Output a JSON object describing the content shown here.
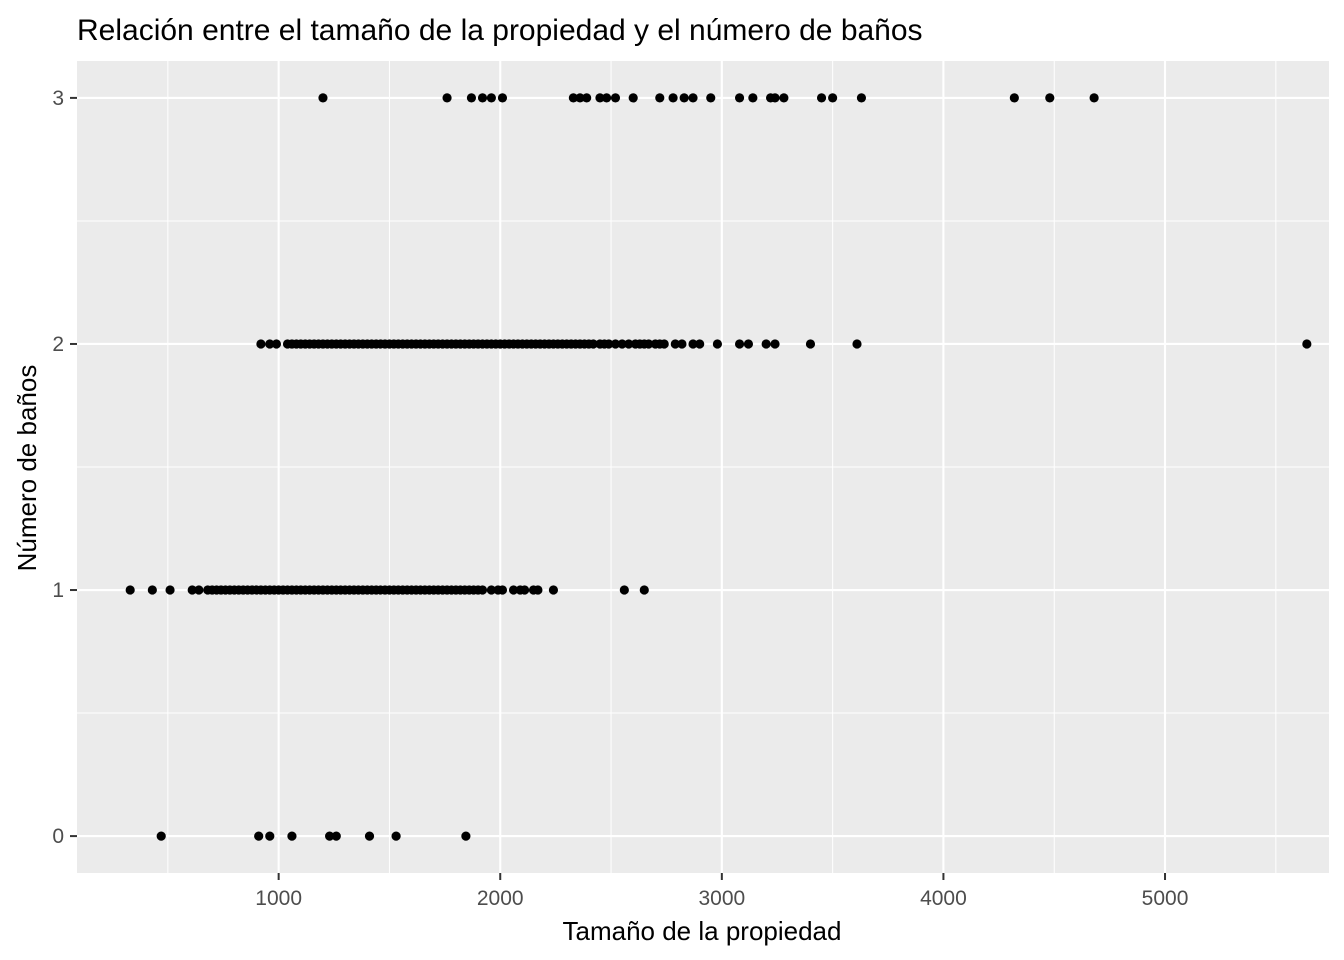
{
  "chart_data": {
    "type": "scatter",
    "title": "Relación entre el tamaño de la propiedad y el número de baños",
    "xlabel": "Tamaño de la propiedad",
    "ylabel": "Número de baños",
    "xlim": [
      90,
      5740
    ],
    "ylim": [
      -0.15,
      3.15
    ],
    "x_ticks": [
      1000,
      2000,
      3000,
      4000,
      5000
    ],
    "x_tick_labels": [
      "1000",
      "2000",
      "3000",
      "4000",
      "5000"
    ],
    "y_ticks": [
      0,
      1,
      2,
      3
    ],
    "y_tick_labels": [
      "0",
      "1",
      "2",
      "3"
    ],
    "grid": true,
    "legend": "none",
    "colors": {
      "panel": "#ebebeb",
      "grid": "#ffffff",
      "point": "#000000",
      "tick": "#4d4d4d"
    },
    "points": [
      {
        "x": 470,
        "y": 0
      },
      {
        "x": 910,
        "y": 0
      },
      {
        "x": 960,
        "y": 0
      },
      {
        "x": 1060,
        "y": 0
      },
      {
        "x": 1230,
        "y": 0
      },
      {
        "x": 1260,
        "y": 0
      },
      {
        "x": 1410,
        "y": 0
      },
      {
        "x": 1530,
        "y": 0
      },
      {
        "x": 1845,
        "y": 0
      },
      {
        "x": 330,
        "y": 1
      },
      {
        "x": 430,
        "y": 1
      },
      {
        "x": 510,
        "y": 1
      },
      {
        "x": 610,
        "y": 1
      },
      {
        "x": 640,
        "y": 1
      },
      {
        "x": 680,
        "y": 1
      },
      {
        "x": 700,
        "y": 1
      },
      {
        "x": 720,
        "y": 1
      },
      {
        "x": 740,
        "y": 1
      },
      {
        "x": 760,
        "y": 1
      },
      {
        "x": 780,
        "y": 1
      },
      {
        "x": 800,
        "y": 1
      },
      {
        "x": 820,
        "y": 1
      },
      {
        "x": 840,
        "y": 1
      },
      {
        "x": 860,
        "y": 1
      },
      {
        "x": 880,
        "y": 1
      },
      {
        "x": 900,
        "y": 1
      },
      {
        "x": 920,
        "y": 1
      },
      {
        "x": 940,
        "y": 1
      },
      {
        "x": 960,
        "y": 1
      },
      {
        "x": 980,
        "y": 1
      },
      {
        "x": 1000,
        "y": 1
      },
      {
        "x": 1020,
        "y": 1
      },
      {
        "x": 1040,
        "y": 1
      },
      {
        "x": 1060,
        "y": 1
      },
      {
        "x": 1080,
        "y": 1
      },
      {
        "x": 1100,
        "y": 1
      },
      {
        "x": 1120,
        "y": 1
      },
      {
        "x": 1140,
        "y": 1
      },
      {
        "x": 1160,
        "y": 1
      },
      {
        "x": 1180,
        "y": 1
      },
      {
        "x": 1200,
        "y": 1
      },
      {
        "x": 1220,
        "y": 1
      },
      {
        "x": 1240,
        "y": 1
      },
      {
        "x": 1260,
        "y": 1
      },
      {
        "x": 1280,
        "y": 1
      },
      {
        "x": 1300,
        "y": 1
      },
      {
        "x": 1320,
        "y": 1
      },
      {
        "x": 1340,
        "y": 1
      },
      {
        "x": 1360,
        "y": 1
      },
      {
        "x": 1380,
        "y": 1
      },
      {
        "x": 1400,
        "y": 1
      },
      {
        "x": 1420,
        "y": 1
      },
      {
        "x": 1440,
        "y": 1
      },
      {
        "x": 1460,
        "y": 1
      },
      {
        "x": 1480,
        "y": 1
      },
      {
        "x": 1500,
        "y": 1
      },
      {
        "x": 1520,
        "y": 1
      },
      {
        "x": 1540,
        "y": 1
      },
      {
        "x": 1560,
        "y": 1
      },
      {
        "x": 1580,
        "y": 1
      },
      {
        "x": 1600,
        "y": 1
      },
      {
        "x": 1620,
        "y": 1
      },
      {
        "x": 1640,
        "y": 1
      },
      {
        "x": 1660,
        "y": 1
      },
      {
        "x": 1680,
        "y": 1
      },
      {
        "x": 1700,
        "y": 1
      },
      {
        "x": 1720,
        "y": 1
      },
      {
        "x": 1740,
        "y": 1
      },
      {
        "x": 1760,
        "y": 1
      },
      {
        "x": 1780,
        "y": 1
      },
      {
        "x": 1800,
        "y": 1
      },
      {
        "x": 1820,
        "y": 1
      },
      {
        "x": 1840,
        "y": 1
      },
      {
        "x": 1860,
        "y": 1
      },
      {
        "x": 1880,
        "y": 1
      },
      {
        "x": 1900,
        "y": 1
      },
      {
        "x": 1920,
        "y": 1
      },
      {
        "x": 1960,
        "y": 1
      },
      {
        "x": 1990,
        "y": 1
      },
      {
        "x": 2010,
        "y": 1
      },
      {
        "x": 2060,
        "y": 1
      },
      {
        "x": 2090,
        "y": 1
      },
      {
        "x": 2110,
        "y": 1
      },
      {
        "x": 2150,
        "y": 1
      },
      {
        "x": 2170,
        "y": 1
      },
      {
        "x": 2240,
        "y": 1
      },
      {
        "x": 2560,
        "y": 1
      },
      {
        "x": 2650,
        "y": 1
      },
      {
        "x": 920,
        "y": 2
      },
      {
        "x": 960,
        "y": 2
      },
      {
        "x": 990,
        "y": 2
      },
      {
        "x": 1040,
        "y": 2
      },
      {
        "x": 1060,
        "y": 2
      },
      {
        "x": 1080,
        "y": 2
      },
      {
        "x": 1100,
        "y": 2
      },
      {
        "x": 1120,
        "y": 2
      },
      {
        "x": 1140,
        "y": 2
      },
      {
        "x": 1160,
        "y": 2
      },
      {
        "x": 1180,
        "y": 2
      },
      {
        "x": 1200,
        "y": 2
      },
      {
        "x": 1220,
        "y": 2
      },
      {
        "x": 1240,
        "y": 2
      },
      {
        "x": 1260,
        "y": 2
      },
      {
        "x": 1280,
        "y": 2
      },
      {
        "x": 1300,
        "y": 2
      },
      {
        "x": 1320,
        "y": 2
      },
      {
        "x": 1340,
        "y": 2
      },
      {
        "x": 1360,
        "y": 2
      },
      {
        "x": 1380,
        "y": 2
      },
      {
        "x": 1400,
        "y": 2
      },
      {
        "x": 1420,
        "y": 2
      },
      {
        "x": 1440,
        "y": 2
      },
      {
        "x": 1460,
        "y": 2
      },
      {
        "x": 1480,
        "y": 2
      },
      {
        "x": 1500,
        "y": 2
      },
      {
        "x": 1520,
        "y": 2
      },
      {
        "x": 1540,
        "y": 2
      },
      {
        "x": 1560,
        "y": 2
      },
      {
        "x": 1580,
        "y": 2
      },
      {
        "x": 1600,
        "y": 2
      },
      {
        "x": 1620,
        "y": 2
      },
      {
        "x": 1640,
        "y": 2
      },
      {
        "x": 1660,
        "y": 2
      },
      {
        "x": 1680,
        "y": 2
      },
      {
        "x": 1700,
        "y": 2
      },
      {
        "x": 1720,
        "y": 2
      },
      {
        "x": 1740,
        "y": 2
      },
      {
        "x": 1760,
        "y": 2
      },
      {
        "x": 1780,
        "y": 2
      },
      {
        "x": 1800,
        "y": 2
      },
      {
        "x": 1820,
        "y": 2
      },
      {
        "x": 1840,
        "y": 2
      },
      {
        "x": 1860,
        "y": 2
      },
      {
        "x": 1880,
        "y": 2
      },
      {
        "x": 1900,
        "y": 2
      },
      {
        "x": 1920,
        "y": 2
      },
      {
        "x": 1940,
        "y": 2
      },
      {
        "x": 1960,
        "y": 2
      },
      {
        "x": 1980,
        "y": 2
      },
      {
        "x": 2000,
        "y": 2
      },
      {
        "x": 2020,
        "y": 2
      },
      {
        "x": 2040,
        "y": 2
      },
      {
        "x": 2060,
        "y": 2
      },
      {
        "x": 2080,
        "y": 2
      },
      {
        "x": 2100,
        "y": 2
      },
      {
        "x": 2120,
        "y": 2
      },
      {
        "x": 2140,
        "y": 2
      },
      {
        "x": 2160,
        "y": 2
      },
      {
        "x": 2180,
        "y": 2
      },
      {
        "x": 2200,
        "y": 2
      },
      {
        "x": 2220,
        "y": 2
      },
      {
        "x": 2240,
        "y": 2
      },
      {
        "x": 2260,
        "y": 2
      },
      {
        "x": 2280,
        "y": 2
      },
      {
        "x": 2300,
        "y": 2
      },
      {
        "x": 2320,
        "y": 2
      },
      {
        "x": 2340,
        "y": 2
      },
      {
        "x": 2360,
        "y": 2
      },
      {
        "x": 2380,
        "y": 2
      },
      {
        "x": 2400,
        "y": 2
      },
      {
        "x": 2420,
        "y": 2
      },
      {
        "x": 2450,
        "y": 2
      },
      {
        "x": 2470,
        "y": 2
      },
      {
        "x": 2490,
        "y": 2
      },
      {
        "x": 2520,
        "y": 2
      },
      {
        "x": 2550,
        "y": 2
      },
      {
        "x": 2580,
        "y": 2
      },
      {
        "x": 2610,
        "y": 2
      },
      {
        "x": 2630,
        "y": 2
      },
      {
        "x": 2650,
        "y": 2
      },
      {
        "x": 2670,
        "y": 2
      },
      {
        "x": 2700,
        "y": 2
      },
      {
        "x": 2720,
        "y": 2
      },
      {
        "x": 2740,
        "y": 2
      },
      {
        "x": 2790,
        "y": 2
      },
      {
        "x": 2820,
        "y": 2
      },
      {
        "x": 2870,
        "y": 2
      },
      {
        "x": 2900,
        "y": 2
      },
      {
        "x": 2980,
        "y": 2
      },
      {
        "x": 3080,
        "y": 2
      },
      {
        "x": 3120,
        "y": 2
      },
      {
        "x": 3200,
        "y": 2
      },
      {
        "x": 3240,
        "y": 2
      },
      {
        "x": 3400,
        "y": 2
      },
      {
        "x": 3610,
        "y": 2
      },
      {
        "x": 5640,
        "y": 2
      },
      {
        "x": 1200,
        "y": 3
      },
      {
        "x": 1760,
        "y": 3
      },
      {
        "x": 1870,
        "y": 3
      },
      {
        "x": 1920,
        "y": 3
      },
      {
        "x": 1960,
        "y": 3
      },
      {
        "x": 2010,
        "y": 3
      },
      {
        "x": 2330,
        "y": 3
      },
      {
        "x": 2360,
        "y": 3
      },
      {
        "x": 2390,
        "y": 3
      },
      {
        "x": 2450,
        "y": 3
      },
      {
        "x": 2480,
        "y": 3
      },
      {
        "x": 2520,
        "y": 3
      },
      {
        "x": 2600,
        "y": 3
      },
      {
        "x": 2720,
        "y": 3
      },
      {
        "x": 2780,
        "y": 3
      },
      {
        "x": 2830,
        "y": 3
      },
      {
        "x": 2870,
        "y": 3
      },
      {
        "x": 2950,
        "y": 3
      },
      {
        "x": 3080,
        "y": 3
      },
      {
        "x": 3140,
        "y": 3
      },
      {
        "x": 3220,
        "y": 3
      },
      {
        "x": 3240,
        "y": 3
      },
      {
        "x": 3280,
        "y": 3
      },
      {
        "x": 3450,
        "y": 3
      },
      {
        "x": 3500,
        "y": 3
      },
      {
        "x": 3630,
        "y": 3
      },
      {
        "x": 4320,
        "y": 3
      },
      {
        "x": 4480,
        "y": 3
      },
      {
        "x": 4680,
        "y": 3
      }
    ]
  }
}
